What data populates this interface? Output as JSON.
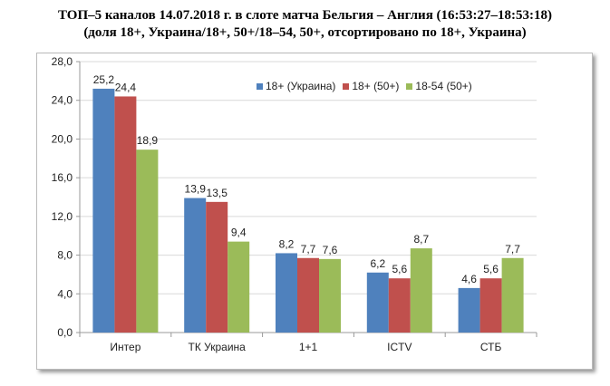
{
  "title_line1": "ТОП–5 каналов 14.07.2018 г. в слоте матча Бельгия – Англия (16:53:27–18:53:18)",
  "title_line2": "(доля 18+, Украина/18+, 50+/18–54, 50+, отсортировано по 18+, Украина)",
  "chart_data": {
    "type": "bar",
    "title": "ТОП–5 каналов 14.07.2018 г. в слоте матча Бельгия – Англия (16:53:27–18:53:18) (доля 18+, Украина/18+, 50+/18–54, 50+, отсортировано по 18+, Украина)",
    "categories": [
      "Интер",
      "ТК Украина",
      "1+1",
      "ICTV",
      "СТБ"
    ],
    "series": [
      {
        "name": "18+ (Украина)",
        "color": "#4F81BD",
        "values": [
          25.2,
          13.9,
          8.2,
          6.2,
          4.6
        ],
        "labels": [
          "25,2",
          "13,9",
          "8,2",
          "6,2",
          "4,6"
        ]
      },
      {
        "name": "18+ (50+)",
        "color": "#C0504D",
        "values": [
          24.4,
          13.5,
          7.7,
          5.6,
          5.6
        ],
        "labels": [
          "24,4",
          "13,5",
          "7,7",
          "5,6",
          "5,6"
        ]
      },
      {
        "name": "18-54 (50+)",
        "color": "#9BBB59",
        "values": [
          18.9,
          9.4,
          7.6,
          8.7,
          7.7
        ],
        "labels": [
          "18,9",
          "9,4",
          "7,6",
          "8,7",
          "7,7"
        ]
      }
    ],
    "ylim": [
      0,
      28
    ],
    "yticks": [
      "0,0",
      "4,0",
      "8,0",
      "12,0",
      "16,0",
      "20,0",
      "24,0",
      "28,0"
    ],
    "grid": true,
    "legend": "top-right",
    "xlabel": "",
    "ylabel": ""
  }
}
